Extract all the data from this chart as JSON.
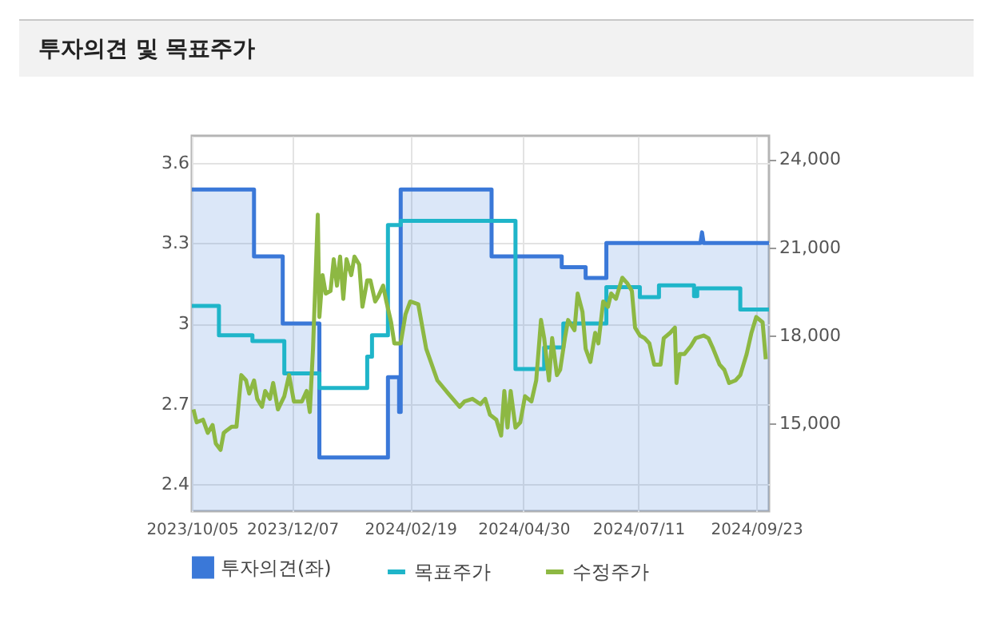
{
  "chart_data": {
    "type": "line",
    "title": "투자의견 및 목표주가",
    "xlim": [
      "2023-10-05",
      "2024-10-01"
    ],
    "xticks": [
      {
        "value": "2023-10-05",
        "label": "2023/10/05"
      },
      {
        "value": "2023-12-07",
        "label": "2023/12/07"
      },
      {
        "value": "2024-02-19",
        "label": "2024/02/19"
      },
      {
        "value": "2024-04-30",
        "label": "2024/04/30"
      },
      {
        "value": "2024-07-11",
        "label": "2024/07/11"
      },
      {
        "value": "2024-09-23",
        "label": "2024/09/23"
      }
    ],
    "ylim": [
      2.3,
      3.7
    ],
    "yticks": [
      2.4,
      2.7,
      {
        "value": 3,
        "label": "3"
      },
      3.3,
      3.6
    ],
    "y2lim": [
      12000,
      24800
    ],
    "y2ticks": [
      {
        "value": 15000,
        "label": "15,000"
      },
      {
        "value": 18000,
        "label": "18,000"
      },
      {
        "value": 21000,
        "label": "21,000"
      },
      {
        "value": 24000,
        "label": "24,000"
      }
    ],
    "grid": true,
    "legend": "bottom",
    "series": [
      {
        "name": "투자의견(좌)",
        "type": "area",
        "color": "#3a78d8",
        "x": [
          "2023-10-05",
          "2023-11-13",
          "2023-11-13",
          "2023-12-01",
          "2023-12-01",
          "2023-12-24",
          "2023-12-24",
          "2024-02-05",
          "2024-02-05",
          "2024-02-12",
          "2024-02-12",
          "2024-02-13",
          "2024-02-13",
          "2024-04-10",
          "2024-04-10",
          "2024-05-24",
          "2024-05-24",
          "2024-06-08",
          "2024-06-08",
          "2024-06-21",
          "2024-06-21",
          "2024-08-19",
          "2024-08-20",
          "2024-08-21",
          "2024-10-01"
        ],
        "values": [
          3.5,
          3.5,
          3.25,
          3.25,
          3.0,
          3.0,
          2.5,
          2.5,
          2.8,
          2.8,
          2.67,
          2.67,
          3.5,
          3.5,
          3.25,
          3.25,
          3.21,
          3.21,
          3.17,
          3.17,
          3.3,
          3.3,
          3.34,
          3.3,
          3.3
        ]
      },
      {
        "name": "목표주가",
        "type": "step",
        "axis": "y2",
        "color": "#1fb5c9",
        "x": [
          "2023-10-05",
          "2023-10-22",
          "2023-11-12",
          "2023-12-02",
          "2023-12-24",
          "2024-01-23",
          "2024-01-26",
          "2024-02-05",
          "2024-02-13",
          "2024-04-25",
          "2024-05-13",
          "2024-05-25",
          "2024-06-21",
          "2024-07-12",
          "2024-07-24",
          "2024-08-15",
          "2024-08-17",
          "2024-09-13",
          "2024-10-01"
        ],
        "values": [
          19000,
          18000,
          17800,
          16700,
          16200,
          17270,
          18000,
          21760,
          21900,
          16850,
          17580,
          18400,
          19640,
          19300,
          19700,
          19330,
          19600,
          18880,
          18880
        ]
      },
      {
        "name": "수정주가",
        "axis": "y2",
        "color": "#8db843",
        "x": [
          "2023-10-06",
          "2023-10-08",
          "2023-10-12",
          "2023-10-15",
          "2023-10-18",
          "2023-10-20",
          "2023-10-23",
          "2023-10-25",
          "2023-10-27",
          "2023-10-30",
          "2023-11-02",
          "2023-11-05",
          "2023-11-08",
          "2023-11-10",
          "2023-11-13",
          "2023-11-15",
          "2023-11-18",
          "2023-11-20",
          "2023-11-23",
          "2023-11-25",
          "2023-11-28",
          "2023-12-02",
          "2023-12-05",
          "2023-12-08",
          "2023-12-13",
          "2023-12-16",
          "2023-12-18",
          "2023-12-20",
          "2023-12-23",
          "2023-12-24",
          "2023-12-26",
          "2023-12-28",
          "2023-12-31",
          "2024-01-02",
          "2024-01-04",
          "2024-01-06",
          "2024-01-08",
          "2024-01-10",
          "2024-01-13",
          "2024-01-15",
          "2024-01-18",
          "2024-01-20",
          "2024-01-23",
          "2024-01-25",
          "2024-01-28",
          "2024-01-30",
          "2024-02-02",
          "2024-02-04",
          "2024-02-07",
          "2024-02-09",
          "2024-02-13",
          "2024-02-16",
          "2024-02-19",
          "2024-02-24",
          "2024-02-29",
          "2024-03-07",
          "2024-03-14",
          "2024-03-21",
          "2024-03-24",
          "2024-03-29",
          "2024-04-03",
          "2024-04-06",
          "2024-04-09",
          "2024-04-13",
          "2024-04-16",
          "2024-04-18",
          "2024-04-20",
          "2024-04-22",
          "2024-04-25",
          "2024-04-28",
          "2024-05-01",
          "2024-05-05",
          "2024-05-08",
          "2024-05-11",
          "2024-05-13",
          "2024-05-16",
          "2024-05-18",
          "2024-05-21",
          "2024-05-23",
          "2024-05-26",
          "2024-05-28",
          "2024-06-01",
          "2024-06-03",
          "2024-06-06",
          "2024-06-08",
          "2024-06-11",
          "2024-06-14",
          "2024-06-16",
          "2024-06-19",
          "2024-06-22",
          "2024-06-24",
          "2024-06-27",
          "2024-07-01",
          "2024-07-04",
          "2024-07-07",
          "2024-07-09",
          "2024-07-12",
          "2024-07-15",
          "2024-07-18",
          "2024-07-21",
          "2024-07-25",
          "2024-07-27",
          "2024-07-31",
          "2024-08-03",
          "2024-08-04",
          "2024-08-06",
          "2024-08-09",
          "2024-08-13",
          "2024-08-16",
          "2024-08-21",
          "2024-08-24",
          "2024-08-27",
          "2024-08-31",
          "2024-09-03",
          "2024-09-06",
          "2024-09-10",
          "2024-09-13",
          "2024-09-17",
          "2024-09-20",
          "2024-09-23",
          "2024-09-27",
          "2024-09-29"
        ],
        "values": [
          15470,
          15030,
          15120,
          14670,
          14940,
          14310,
          14090,
          14670,
          14760,
          14880,
          14880,
          16640,
          16460,
          16010,
          16460,
          15830,
          15560,
          16100,
          15830,
          16370,
          15470,
          15920,
          16640,
          15740,
          15740,
          16100,
          15380,
          17540,
          22110,
          18620,
          20050,
          19420,
          19510,
          20590,
          19690,
          20680,
          19240,
          20590,
          20050,
          20680,
          20410,
          18970,
          19870,
          19870,
          19150,
          19330,
          19690,
          19150,
          18440,
          17720,
          17720,
          18710,
          19150,
          19060,
          17540,
          16460,
          16000,
          15560,
          15740,
          15830,
          15650,
          15830,
          15290,
          15120,
          14580,
          16100,
          14850,
          16100,
          14850,
          15030,
          15920,
          15740,
          16460,
          18520,
          17900,
          16460,
          17900,
          16640,
          16820,
          17900,
          18520,
          18170,
          19420,
          18800,
          17540,
          17090,
          18080,
          17720,
          19150,
          18970,
          19420,
          19240,
          19960,
          19780,
          19510,
          18260,
          17990,
          17900,
          17720,
          17000,
          17000,
          17900,
          18080,
          18260,
          16370,
          17360,
          17360,
          17630,
          17900,
          17990,
          17900,
          17540,
          17000,
          16820,
          16370,
          16460,
          16640,
          17360,
          18080,
          18620,
          18440,
          17180
        ]
      }
    ]
  }
}
